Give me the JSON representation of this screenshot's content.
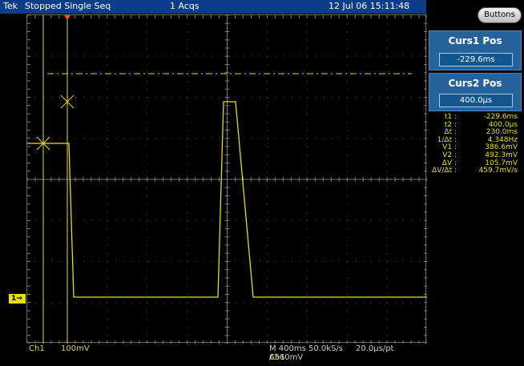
{
  "status_bar": {
    "brand": "Tek",
    "state": "Stopped  Single Seq",
    "acquisitions": "1 Acqs",
    "datetime": "12 Jul 06 15:11:48"
  },
  "channel_marker": "1→",
  "bottom": {
    "channel": "Ch1",
    "vertical_scale": "100mV",
    "horizontal": "M 400ms 50.0kS/s",
    "trigger_prefix": "A",
    "trigger_channel": "Ch1",
    "trigger_level": "∕  560mV",
    "resolution": "20.0µs/pt"
  },
  "right_panel": {
    "buttons_label": "Buttons",
    "curs1": {
      "title": "Curs1 Pos",
      "value": "-229.6ms"
    },
    "curs2": {
      "title": "Curs2 Pos",
      "value": "400.0µs"
    }
  },
  "readouts": [
    {
      "label": "t1 :",
      "value": "-229.6ms"
    },
    {
      "label": "t2 :",
      "value": "400.0µs"
    },
    {
      "label": "Δt :",
      "value": "230.0ms"
    },
    {
      "label": "1/Δt :",
      "value": "4.348Hz"
    },
    {
      "label": "V1 :",
      "value": "386.6mV"
    },
    {
      "label": "V2 :",
      "value": "492.3mV"
    },
    {
      "label": "ΔV :",
      "value": "105.7mV"
    },
    {
      "label": "ΔV/Δt :",
      "value": "459.7mV/s"
    }
  ],
  "colors": {
    "trace": "#e6e000",
    "grid": "#5a5a5a",
    "status_bar": "#0d3d8a",
    "panel_box": "#27639b",
    "trigger_marker": "#ff4f1a"
  }
}
